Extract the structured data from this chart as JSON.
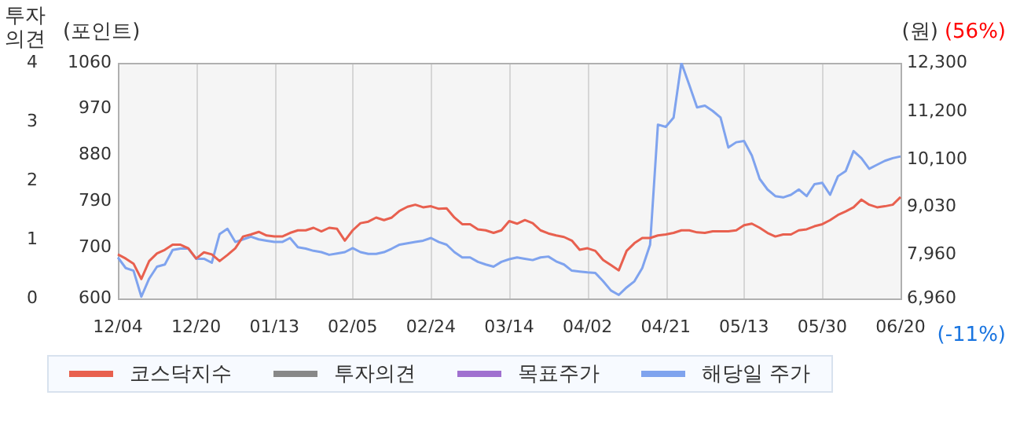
{
  "chart_data": {
    "type": "line",
    "ylabel": "(포인트)",
    "y2label": "(원)",
    "y3label": "투자의견",
    "categories": [
      "12/04",
      null,
      null,
      null,
      null,
      null,
      null,
      null,
      null,
      null,
      "12/20",
      null,
      null,
      null,
      null,
      null,
      null,
      null,
      null,
      null,
      "01/13",
      null,
      null,
      null,
      null,
      null,
      null,
      null,
      null,
      null,
      "02/05",
      null,
      null,
      null,
      null,
      null,
      null,
      null,
      null,
      null,
      "02/24",
      null,
      null,
      null,
      null,
      null,
      null,
      null,
      null,
      null,
      "03/14",
      null,
      null,
      null,
      null,
      null,
      null,
      null,
      null,
      null,
      "04/02",
      null,
      null,
      null,
      null,
      null,
      null,
      null,
      null,
      null,
      "04/21",
      null,
      null,
      null,
      null,
      null,
      null,
      null,
      null,
      null,
      "05/13",
      null,
      null,
      null,
      null,
      null,
      null,
      null,
      null,
      null,
      "05/30",
      null,
      null,
      null,
      null,
      null,
      null,
      null,
      null,
      null,
      "06/20"
    ],
    "series": [
      {
        "name": "코스닥지수",
        "color": "#e8604f",
        "values": [
          686,
          678,
          668,
          638,
          673,
          688,
          695,
          705,
          705,
          698,
          678,
          690,
          686,
          673,
          685,
          698,
          721,
          725,
          730,
          723,
          721,
          721,
          728,
          733,
          733,
          738,
          731,
          738,
          736,
          713,
          733,
          747,
          750,
          758,
          753,
          758,
          771,
          779,
          783,
          778,
          780,
          775,
          776,
          758,
          745,
          745,
          735,
          733,
          728,
          733,
          751,
          746,
          753,
          747,
          733,
          727,
          723,
          720,
          713,
          695,
          698,
          693,
          675,
          665,
          655,
          693,
          708,
          718,
          718,
          723,
          725,
          728,
          733,
          733,
          729,
          728,
          731,
          731,
          731,
          733,
          743,
          746,
          738,
          728,
          721,
          725,
          725,
          733,
          735,
          741,
          745,
          753,
          763,
          770,
          778,
          793,
          783,
          778,
          780,
          783,
          798
        ]
      },
      {
        "name": "투자의견",
        "color": "#888888",
        "axis": "y3",
        "values": [
          null,
          null,
          null,
          null,
          null,
          null,
          null,
          null,
          null,
          null,
          null,
          null,
          null,
          null,
          null,
          null,
          null,
          null,
          null,
          null,
          null,
          null,
          null,
          null,
          null,
          null,
          null,
          null,
          null,
          null,
          null,
          null,
          null,
          null,
          null,
          null,
          null,
          null,
          null,
          null,
          null,
          null,
          null,
          null,
          null,
          null,
          null,
          null,
          null,
          null,
          null,
          null,
          null,
          null,
          null,
          null,
          null,
          null,
          null,
          null,
          null,
          null,
          null,
          null,
          null,
          null,
          null,
          null,
          null,
          null,
          null,
          null,
          null,
          null,
          null,
          null,
          null,
          null,
          null,
          null,
          null,
          null,
          null,
          null,
          null,
          null,
          null,
          null,
          null,
          null,
          null,
          null,
          null,
          null,
          null,
          null,
          null,
          null,
          null,
          null,
          null
        ]
      },
      {
        "name": "목표주가",
        "color": "#a070d0",
        "axis": "y2",
        "values": [
          null,
          null,
          null,
          null,
          null,
          null,
          null,
          null,
          null,
          null,
          null,
          null,
          null,
          null,
          null,
          null,
          null,
          null,
          null,
          null,
          null,
          null,
          null,
          null,
          null,
          null,
          null,
          null,
          null,
          null,
          null,
          null,
          null,
          null,
          null,
          null,
          null,
          null,
          null,
          null,
          null,
          null,
          null,
          null,
          null,
          null,
          null,
          null,
          null,
          null,
          null,
          null,
          null,
          null,
          null,
          null,
          null,
          null,
          null,
          null,
          null,
          null,
          null,
          null,
          null,
          null,
          null,
          null,
          null,
          null,
          null,
          null,
          null,
          null,
          null,
          null,
          null,
          null,
          null,
          null,
          null,
          null,
          null,
          null,
          null,
          null,
          null,
          null,
          null,
          null,
          null,
          null,
          null,
          null,
          null,
          null,
          null,
          null,
          null,
          null,
          null
        ]
      },
      {
        "name": "해당일 주가",
        "color": "#7fa3ee",
        "axis": "y2",
        "values": [
          7890,
          7650,
          7590,
          7000,
          7410,
          7680,
          7730,
          8060,
          8090,
          8090,
          7860,
          7860,
          7770,
          8420,
          8540,
          8240,
          8300,
          8360,
          8300,
          8270,
          8240,
          8240,
          8330,
          8120,
          8090,
          8040,
          8010,
          7950,
          7980,
          8010,
          8100,
          8010,
          7970,
          7970,
          8010,
          8090,
          8180,
          8210,
          8240,
          8270,
          8330,
          8240,
          8180,
          8010,
          7890,
          7890,
          7790,
          7730,
          7680,
          7790,
          7850,
          7890,
          7860,
          7830,
          7890,
          7910,
          7800,
          7730,
          7590,
          7570,
          7550,
          7540,
          7350,
          7140,
          7040,
          7210,
          7350,
          7650,
          8180,
          10900,
          10850,
          11060,
          12300,
          11800,
          11290,
          11330,
          11210,
          11060,
          10380,
          10500,
          10530,
          10200,
          9670,
          9430,
          9280,
          9250,
          9310,
          9430,
          9280,
          9550,
          9580,
          9310,
          9730,
          9850,
          10300,
          10140,
          9900,
          9990,
          10080,
          10140,
          10180
        ]
      }
    ],
    "ylim": [
      600,
      1060
    ],
    "yticks": [
      600,
      700,
      790,
      880,
      970,
      1060
    ],
    "y2lim": [
      6960,
      12300
    ],
    "y2ticks": [
      {
        "value": 6960,
        "label": "6,960"
      },
      {
        "value": 7960,
        "label": "7,960"
      },
      {
        "value": 9030,
        "label": "9,030"
      },
      {
        "value": 10100,
        "label": "10,100"
      },
      {
        "value": 11200,
        "label": "11,200"
      },
      {
        "value": 12300,
        "label": "12,300"
      }
    ],
    "y3lim": [
      0,
      4
    ],
    "y3ticks": [
      0,
      1,
      2,
      3,
      4
    ],
    "annotations": [
      "(56%)",
      "(-11%)"
    ],
    "grid": "x",
    "legend": "bottom",
    "marker": "none",
    "line_style": "solid"
  }
}
